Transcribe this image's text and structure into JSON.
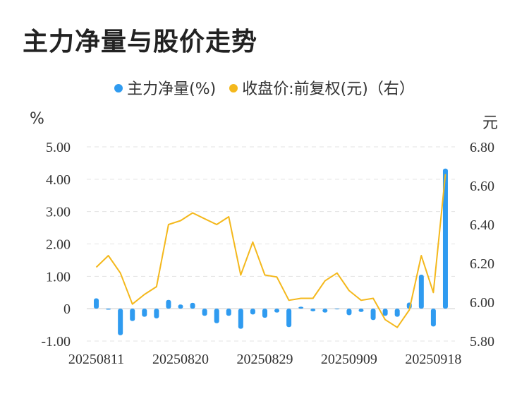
{
  "chart_data": {
    "type": "bar+line",
    "title": "主力净量与股价走势",
    "legend": [
      {
        "label": "主力净量(%)",
        "color": "#2f9bf0"
      },
      {
        "label": "收盘价:前复权(元)（右）",
        "color": "#f4b81c"
      }
    ],
    "y_left": {
      "unit": "%",
      "ticks": [
        "5.00",
        "4.00",
        "3.00",
        "2.00",
        "1.00",
        "0",
        "-1.00"
      ],
      "range": [
        -1,
        5
      ]
    },
    "y_right": {
      "unit": "元",
      "ticks": [
        "6.80",
        "6.60",
        "6.40",
        "6.20",
        "6.00",
        "5.80"
      ],
      "range": [
        5.8,
        6.8
      ]
    },
    "x_tick_labels": [
      "20250811",
      "20250820",
      "20250829",
      "20250909",
      "20250918"
    ],
    "x_tick_index": [
      0,
      7,
      14,
      21,
      28
    ],
    "series": [
      {
        "name": "主力净量(%)",
        "kind": "bar",
        "values": [
          0.32,
          -0.03,
          -0.82,
          -0.38,
          -0.25,
          -0.3,
          0.27,
          0.13,
          0.18,
          -0.22,
          -0.45,
          -0.22,
          -0.62,
          -0.18,
          -0.28,
          -0.12,
          -0.57,
          0.06,
          -0.08,
          -0.12,
          -0.02,
          -0.2,
          -0.1,
          -0.35,
          -0.22,
          -0.25,
          0.19,
          1.05,
          -0.55,
          4.33
        ]
      },
      {
        "name": "收盘价:前复权(元)（右）",
        "kind": "line",
        "values": [
          6.18,
          6.24,
          6.15,
          5.99,
          6.04,
          6.08,
          6.4,
          6.42,
          6.46,
          6.43,
          6.4,
          6.44,
          6.14,
          6.31,
          6.14,
          6.13,
          6.01,
          6.02,
          6.02,
          6.11,
          6.15,
          6.06,
          6.01,
          6.02,
          5.91,
          5.87,
          5.96,
          6.24,
          6.05,
          6.66
        ]
      }
    ]
  }
}
